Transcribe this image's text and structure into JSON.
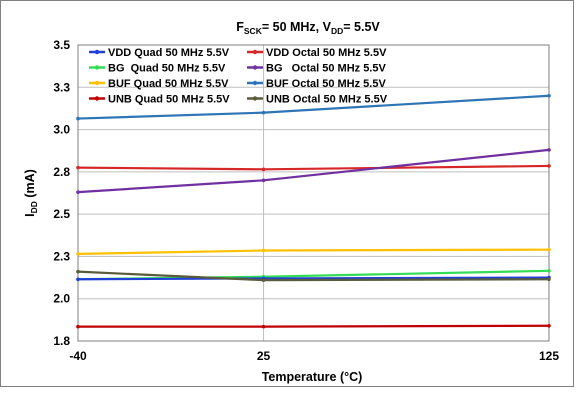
{
  "chart_data": {
    "type": "line",
    "title_parts": {
      "f": "F",
      "f_sub": "SCK",
      "mid": "= 50 MHz, V",
      "v_sub": "DD",
      "end": "= 5.5V"
    },
    "xlabel": "Temperature (°C)",
    "ylabel_parts": {
      "i": "I",
      "i_sub": "DD",
      "unit": " (mA)"
    },
    "x": [
      -40,
      25,
      125
    ],
    "x_ticks": [
      "-40",
      "25",
      "125"
    ],
    "y_ticks": [
      "1.8",
      "2.0",
      "2.3",
      "2.5",
      "2.8",
      "3.0",
      "3.3",
      "3.5"
    ],
    "ylim": [
      1.775,
      3.525
    ],
    "grid": true,
    "legend_position": "top-left",
    "series": [
      {
        "name": "VDD Quad 50 MHz 5.5V",
        "color": "#1f3fd6",
        "values": [
          2.14,
          2.145,
          2.15
        ]
      },
      {
        "name": "VDD Octal 50 MHz 5.5V",
        "color": "#d62728",
        "values": [
          2.8,
          2.79,
          2.81
        ]
      },
      {
        "name": "BG  Quad 50 MHz 5.5V",
        "color": "#33dd55",
        "values": [
          2.14,
          2.155,
          2.19
        ]
      },
      {
        "name": "BG   Octal 50 MHz 5.5V",
        "color": "#7030a0",
        "values": [
          2.655,
          2.725,
          2.905
        ]
      },
      {
        "name": "BUF Quad 50 MHz 5.5V",
        "color": "#ffc000",
        "values": [
          2.29,
          2.31,
          2.315
        ]
      },
      {
        "name": "BUF Octal 50 MHz 5.5V",
        "color": "#2e75b6",
        "values": [
          3.09,
          3.125,
          3.225
        ]
      },
      {
        "name": "UNB Quad 50 MHz 5.5V",
        "color": "#c00000",
        "values": [
          1.86,
          1.86,
          1.865
        ]
      },
      {
        "name": "UNB Octal 50 MHz 5.5V",
        "color": "#5a5a3c",
        "values": [
          2.185,
          2.135,
          2.14
        ]
      }
    ]
  }
}
